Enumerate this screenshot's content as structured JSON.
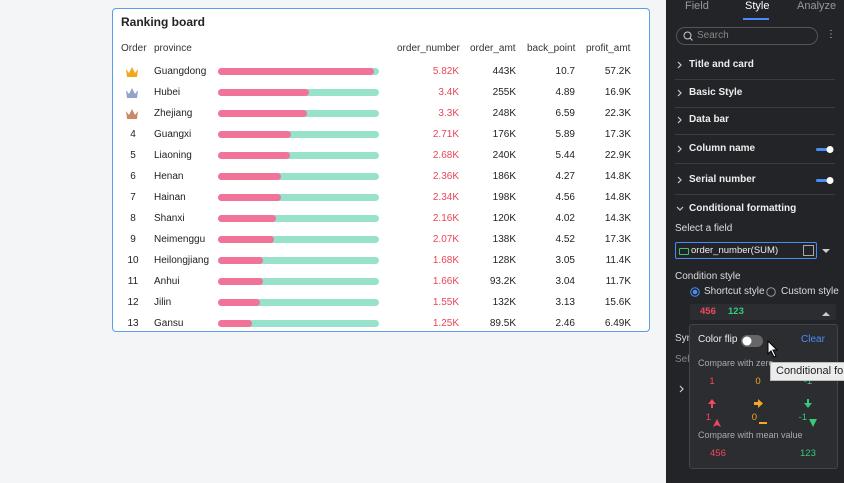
{
  "ranking_board": {
    "title": "Ranking board",
    "columns": [
      "Order",
      "province",
      "order_number",
      "order_amt",
      "back_point",
      "profit_amt"
    ],
    "rows": [
      {
        "order": null,
        "province": "Guangdong",
        "order_number": {
          "value": 5820,
          "label": "5.82K"
        },
        "order_amt": "443K",
        "back_point": "10.7",
        "profit_amt": "57.2K"
      },
      {
        "order": null,
        "province": "Hubei",
        "order_number": {
          "value": 3400,
          "label": "3.4K"
        },
        "order_amt": "255K",
        "back_point": "4.89",
        "profit_amt": "16.9K"
      },
      {
        "order": null,
        "province": "Zhejiang",
        "order_number": {
          "value": 3300,
          "label": "3.3K"
        },
        "order_amt": "248K",
        "back_point": "6.59",
        "profit_amt": "22.3K"
      },
      {
        "order": "4",
        "province": "Guangxi",
        "order_number": {
          "value": 2710,
          "label": "2.71K"
        },
        "order_amt": "176K",
        "back_point": "5.89",
        "profit_amt": "17.3K"
      },
      {
        "order": "5",
        "province": "Liaoning",
        "order_number": {
          "value": 2680,
          "label": "2.68K"
        },
        "order_amt": "240K",
        "back_point": "5.44",
        "profit_amt": "22.9K"
      },
      {
        "order": "6",
        "province": "Henan",
        "order_number": {
          "value": 2360,
          "label": "2.36K"
        },
        "order_amt": "186K",
        "back_point": "4.27",
        "profit_amt": "14.8K"
      },
      {
        "order": "7",
        "province": "Hainan",
        "order_number": {
          "value": 2340,
          "label": "2.34K"
        },
        "order_amt": "198K",
        "back_point": "4.56",
        "profit_amt": "14.8K"
      },
      {
        "order": "8",
        "province": "Shanxi",
        "order_number": {
          "value": 2160,
          "label": "2.16K"
        },
        "order_amt": "120K",
        "back_point": "4.02",
        "profit_amt": "14.3K"
      },
      {
        "order": "9",
        "province": "Neimenggu",
        "order_number": {
          "value": 2070,
          "label": "2.07K"
        },
        "order_amt": "138K",
        "back_point": "4.52",
        "profit_amt": "17.3K"
      },
      {
        "order": "10",
        "province": "Heilongjiang",
        "order_number": {
          "value": 1680,
          "label": "1.68K"
        },
        "order_amt": "128K",
        "back_point": "3.05",
        "profit_amt": "11.4K"
      },
      {
        "order": "11",
        "province": "Anhui",
        "order_number": {
          "value": 1660,
          "label": "1.66K"
        },
        "order_amt": "93.2K",
        "back_point": "3.04",
        "profit_amt": "11.7K"
      },
      {
        "order": "12",
        "province": "Jilin",
        "order_number": {
          "value": 1550,
          "label": "1.55K"
        },
        "order_amt": "132K",
        "back_point": "3.13",
        "profit_amt": "15.6K"
      },
      {
        "order": "13",
        "province": "Gansu",
        "order_number": {
          "value": 1250,
          "label": "1.25K"
        },
        "order_amt": "89.5K",
        "back_point": "2.46",
        "profit_amt": "6.49K"
      }
    ]
  },
  "panel": {
    "tabs": [
      "Field",
      "Style",
      "Analyze"
    ],
    "search_placeholder": "Search",
    "sections": [
      "Title and card",
      "Basic Style",
      "Data bar",
      "Column name",
      "Serial number"
    ],
    "conditional_formatting": {
      "title": "Conditional formatting",
      "select_field_label": "Select a field",
      "field": "order_number(SUM)",
      "condition_style_label": "Condition style",
      "options": [
        "Shortcut style",
        "Custom style"
      ],
      "preview": [
        "456",
        "123"
      ]
    },
    "hidden": [
      "Sym",
      "Sel"
    ]
  },
  "popup": {
    "color_flip": "Color flip",
    "clear": "Clear",
    "compare_zero": {
      "title": "Compare with zero",
      "values": [
        "1",
        "0",
        "-1"
      ],
      "icon_values": [
        "1",
        "0",
        "-1"
      ]
    },
    "compare_mean": {
      "title": "Compare with mean value",
      "values": [
        "456",
        "123"
      ]
    }
  },
  "tooltip": "Conditional formatting"
}
